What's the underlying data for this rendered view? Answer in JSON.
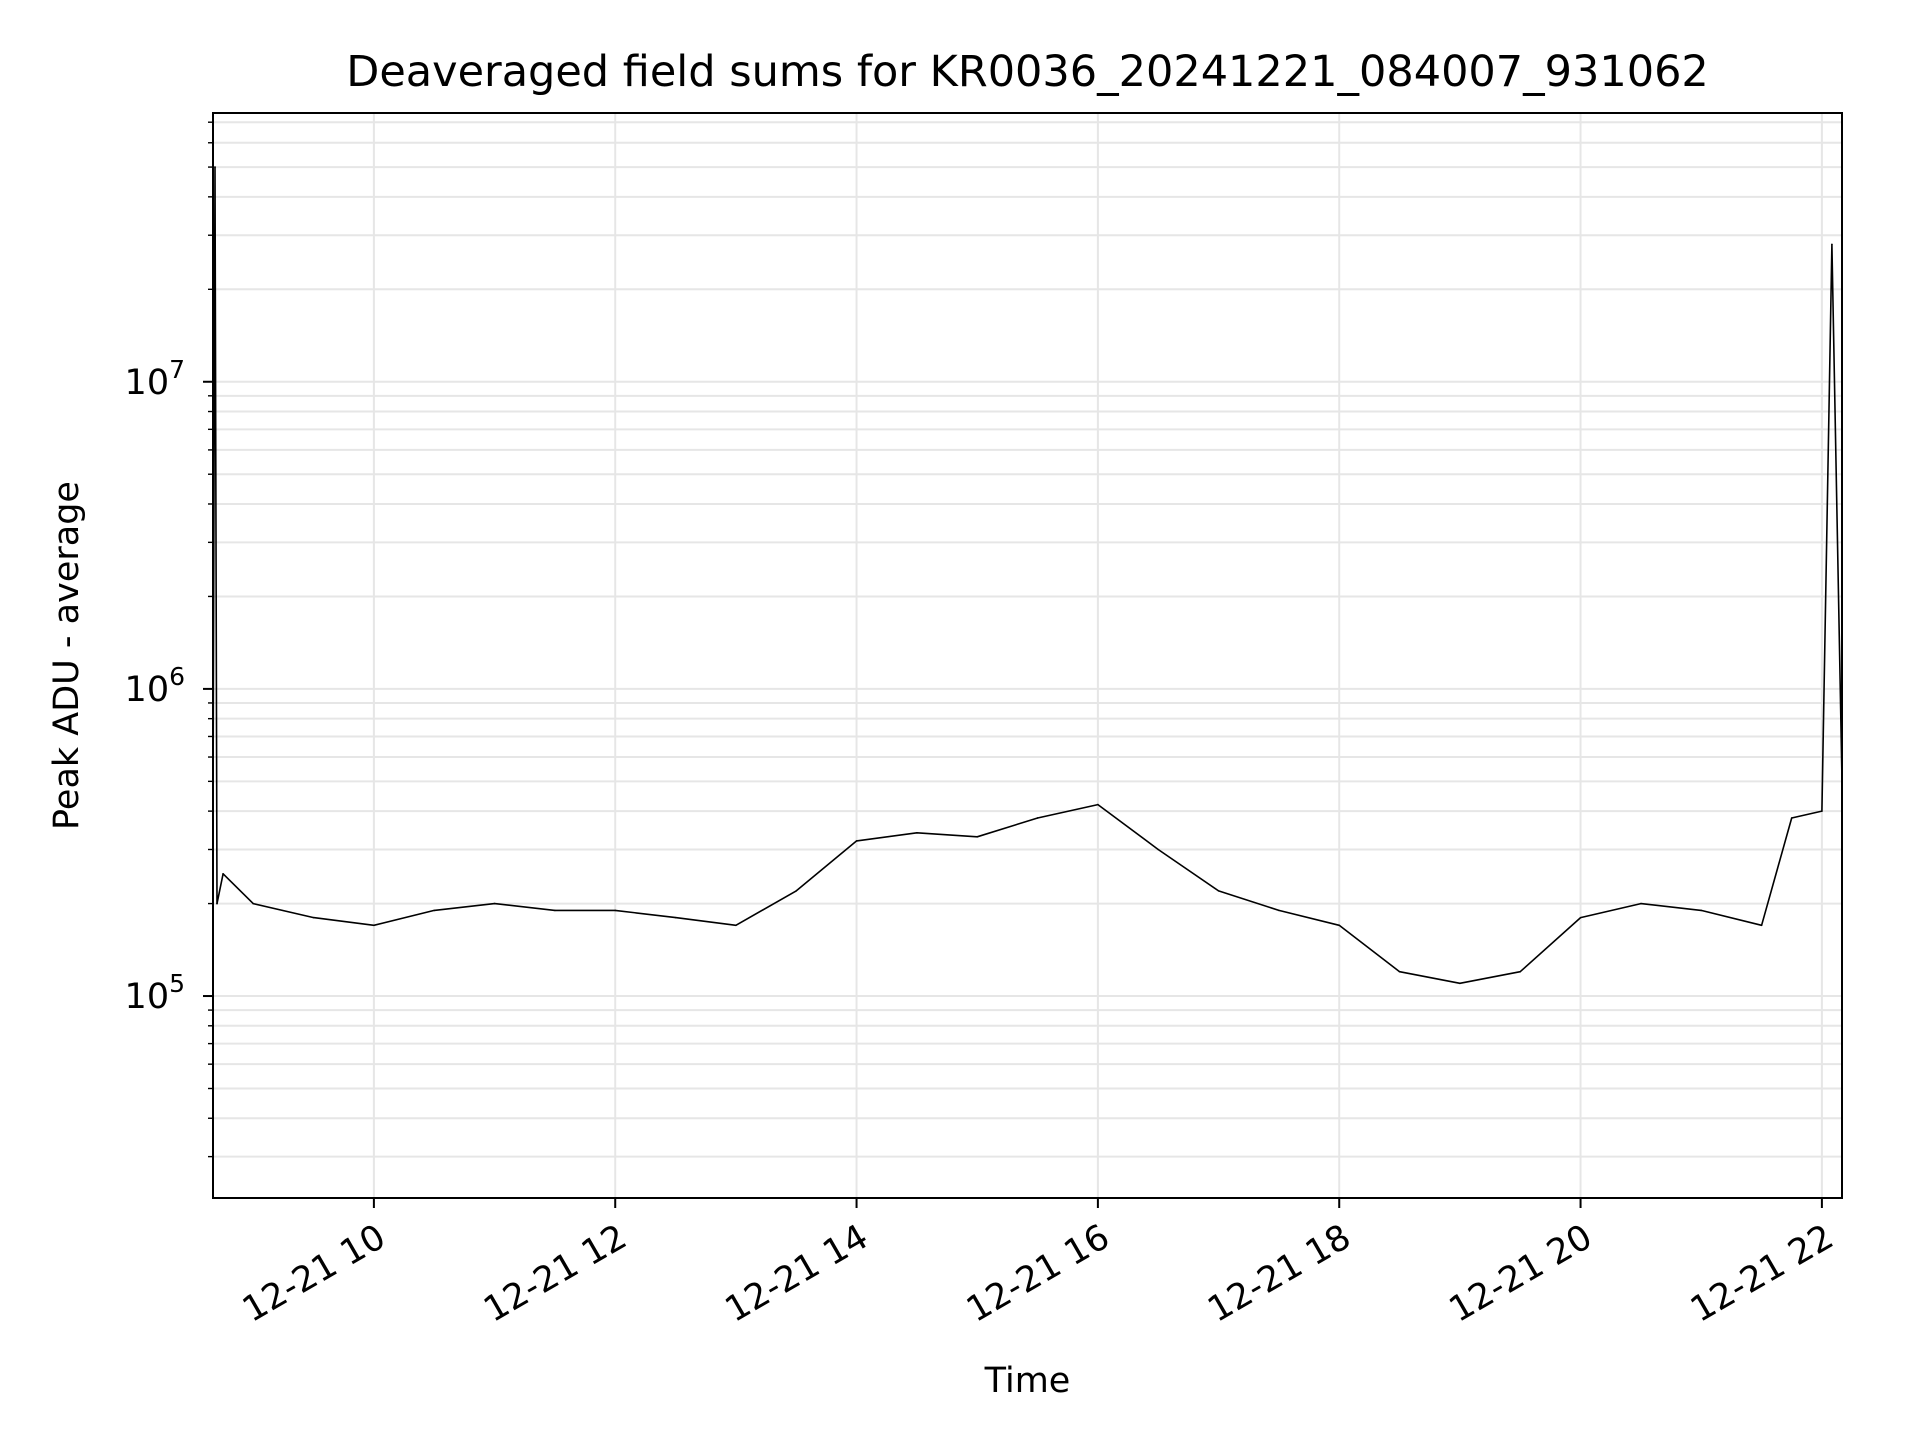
{
  "chart_data": {
    "type": "line",
    "title": "Deaveraged field sums for KR0036_20241221_084007_931062",
    "xlabel": "Time",
    "ylabel": "Peak ADU - average",
    "x_axis": {
      "kind": "date",
      "range": [
        "2024-12-21 08:40",
        "2024-12-21 22:10"
      ],
      "ticks": [
        {
          "value": "2024-12-21 10:00",
          "label": "12-21 10"
        },
        {
          "value": "2024-12-21 12:00",
          "label": "12-21 12"
        },
        {
          "value": "2024-12-21 14:00",
          "label": "12-21 14"
        },
        {
          "value": "2024-12-21 16:00",
          "label": "12-21 16"
        },
        {
          "value": "2024-12-21 18:00",
          "label": "12-21 18"
        },
        {
          "value": "2024-12-21 20:00",
          "label": "12-21 20"
        },
        {
          "value": "2024-12-21 22:00",
          "label": "12-21 22"
        }
      ],
      "tick_label_rotation": "30 degrees"
    },
    "y_axis": {
      "scale": "log",
      "range": [
        22000,
        75000000
      ],
      "ticks": [
        {
          "value": 100000,
          "base": "10",
          "exp": "5"
        },
        {
          "value": 1000000,
          "base": "10",
          "exp": "6"
        },
        {
          "value": 10000000,
          "base": "10",
          "exp": "7"
        }
      ]
    },
    "grid": true,
    "grid_minor": true,
    "line_color": "#000000",
    "grid_color": "#e6e6e6",
    "series": [
      {
        "name": "",
        "x": [
          "2024-12-21 08:40",
          "2024-12-21 08:41",
          "2024-12-21 08:42",
          "2024-12-21 08:45",
          "2024-12-21 09:00",
          "2024-12-21 09:30",
          "2024-12-21 10:00",
          "2024-12-21 10:30",
          "2024-12-21 11:00",
          "2024-12-21 11:30",
          "2024-12-21 12:00",
          "2024-12-21 12:30",
          "2024-12-21 13:00",
          "2024-12-21 13:30",
          "2024-12-21 14:00",
          "2024-12-21 14:30",
          "2024-12-21 15:00",
          "2024-12-21 15:30",
          "2024-12-21 16:00",
          "2024-12-21 16:30",
          "2024-12-21 17:00",
          "2024-12-21 17:30",
          "2024-12-21 18:00",
          "2024-12-21 18:30",
          "2024-12-21 19:00",
          "2024-12-21 19:30",
          "2024-12-21 20:00",
          "2024-12-21 20:30",
          "2024-12-21 21:00",
          "2024-12-21 21:30",
          "2024-12-21 21:45",
          "2024-12-21 22:00",
          "2024-12-21 22:05",
          "2024-12-21 22:10"
        ],
        "values": [
          400000,
          50000000,
          200000,
          250000,
          200000,
          180000,
          170000,
          190000,
          200000,
          190000,
          190000,
          180000,
          170000,
          220000,
          320000,
          340000,
          330000,
          380000,
          420000,
          300000,
          220000,
          190000,
          170000,
          120000,
          110000,
          120000,
          180000,
          200000,
          190000,
          170000,
          380000,
          400000,
          28000000,
          500000
        ]
      }
    ],
    "annotations": []
  }
}
